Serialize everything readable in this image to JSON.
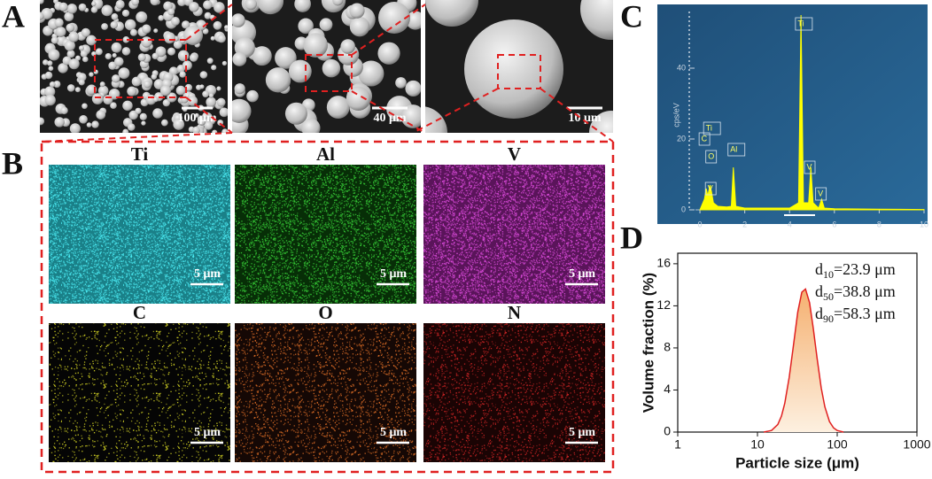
{
  "panels": {
    "A": {
      "label": "A",
      "scale_bars": [
        "100 μm",
        "40 μm",
        "10 μm"
      ]
    },
    "B": {
      "label": "B",
      "maps": [
        {
          "element": "Ti",
          "scale_bar": "5 μm"
        },
        {
          "element": "Al",
          "scale_bar": "5 μm"
        },
        {
          "element": "V",
          "scale_bar": "5 μm"
        },
        {
          "element": "C",
          "scale_bar": "5 μm"
        },
        {
          "element": "O",
          "scale_bar": "5 μm"
        },
        {
          "element": "N",
          "scale_bar": "5 μm"
        }
      ]
    },
    "C": {
      "label": "C"
    },
    "D": {
      "label": "D"
    }
  },
  "chart_data": [
    {
      "type": "area",
      "y_axis_label": "cps/eV",
      "color": "#ffff00",
      "x": [
        0,
        0.2,
        0.28,
        0.35,
        0.45,
        0.52,
        0.6,
        0.8,
        1.2,
        1.4,
        1.49,
        1.6,
        2,
        3,
        4,
        4.4,
        4.51,
        4.62,
        4.85,
        4.95,
        5.05,
        5.3,
        5.43,
        5.55,
        6,
        8,
        10
      ],
      "values": [
        0,
        3,
        6,
        4,
        7,
        5,
        2,
        1,
        0.8,
        1,
        12,
        1,
        0.5,
        0.5,
        0.5,
        2,
        55,
        2,
        2,
        12,
        2,
        0.5,
        3,
        0.5,
        0.3,
        0.2,
        0.1
      ],
      "xlim": [
        -0.2,
        10
      ],
      "ylim": [
        0,
        56
      ],
      "xticks": [
        0,
        2,
        4,
        6,
        8,
        10
      ],
      "yticks": [
        0,
        20,
        40
      ],
      "annotations": [
        {
          "label": "Ti",
          "x": 0.4,
          "y": 23
        },
        {
          "label": "C",
          "x": 0.2,
          "y": 20
        },
        {
          "label": "O",
          "x": 0.5,
          "y": 15
        },
        {
          "label": "V",
          "x": 0.48,
          "y": 6
        },
        {
          "label": "Al",
          "x": 1.49,
          "y": 17
        },
        {
          "label": "Ti",
          "x": 4.5,
          "y": 52.5
        },
        {
          "label": "V",
          "x": 4.9,
          "y": 12
        },
        {
          "label": "V",
          "x": 5.4,
          "y": 4.5
        }
      ]
    },
    {
      "type": "line",
      "x_label": "Particle size (μm)",
      "y_label": "Volume fraction (%)",
      "color": "#e02020",
      "fill": "#f6b878",
      "xscale": "log",
      "x": [
        12,
        15,
        18,
        20,
        22,
        25,
        28,
        32,
        36,
        40,
        45,
        50,
        56,
        63,
        70,
        80,
        90,
        100,
        120
      ],
      "values": [
        0,
        0.15,
        0.72,
        1.52,
        2.74,
        5.2,
        8.0,
        11.4,
        13.3,
        13.6,
        12.3,
        9.9,
        7.0,
        4.2,
        2.4,
        1.0,
        0.4,
        0.15,
        0
      ],
      "xlim": [
        1,
        1000
      ],
      "ylim": [
        0,
        17
      ],
      "xticks": [
        1,
        10,
        100,
        1000
      ],
      "yticks": [
        0,
        4,
        8,
        12,
        16
      ],
      "annotations": [
        {
          "symbol": "d",
          "subscript": "10",
          "text": "=23.9 μm"
        },
        {
          "symbol": "d",
          "subscript": "50",
          "text": "=38.8 μm"
        },
        {
          "symbol": "d",
          "subscript": "90",
          "text": "=58.3 μm"
        }
      ]
    }
  ]
}
